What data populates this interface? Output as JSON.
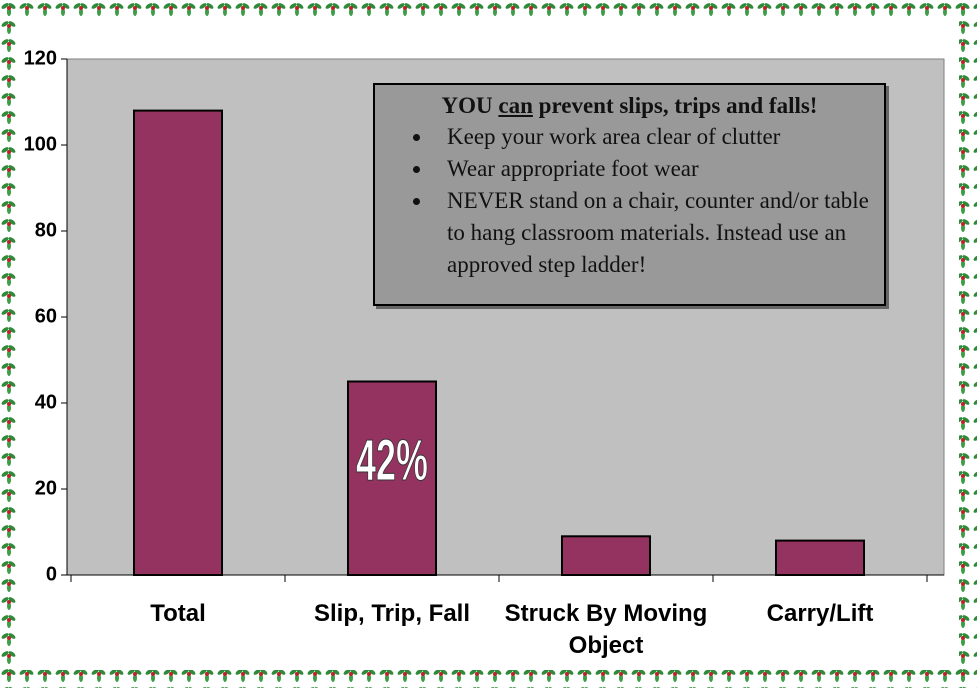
{
  "chart_data": {
    "type": "bar",
    "categories": [
      "Total",
      "Slip, Trip, Fall",
      "Struck By Moving Object",
      "Carry/Lift"
    ],
    "values": [
      108,
      45,
      9,
      8
    ],
    "color": "#943360",
    "ylim": [
      0,
      120
    ],
    "yticks": [
      0,
      20,
      40,
      60,
      80,
      100,
      120
    ],
    "annotation": "42%",
    "note": {
      "title": [
        "YOU",
        "can",
        "prevent slips, trips and falls!"
      ],
      "bullets": [
        "Keep your work area clear of clutter",
        "Wear appropriate foot wear",
        "NEVER stand on a chair, counter and/or table to hang classroom materials. Instead use an approved step ladder!"
      ]
    }
  }
}
